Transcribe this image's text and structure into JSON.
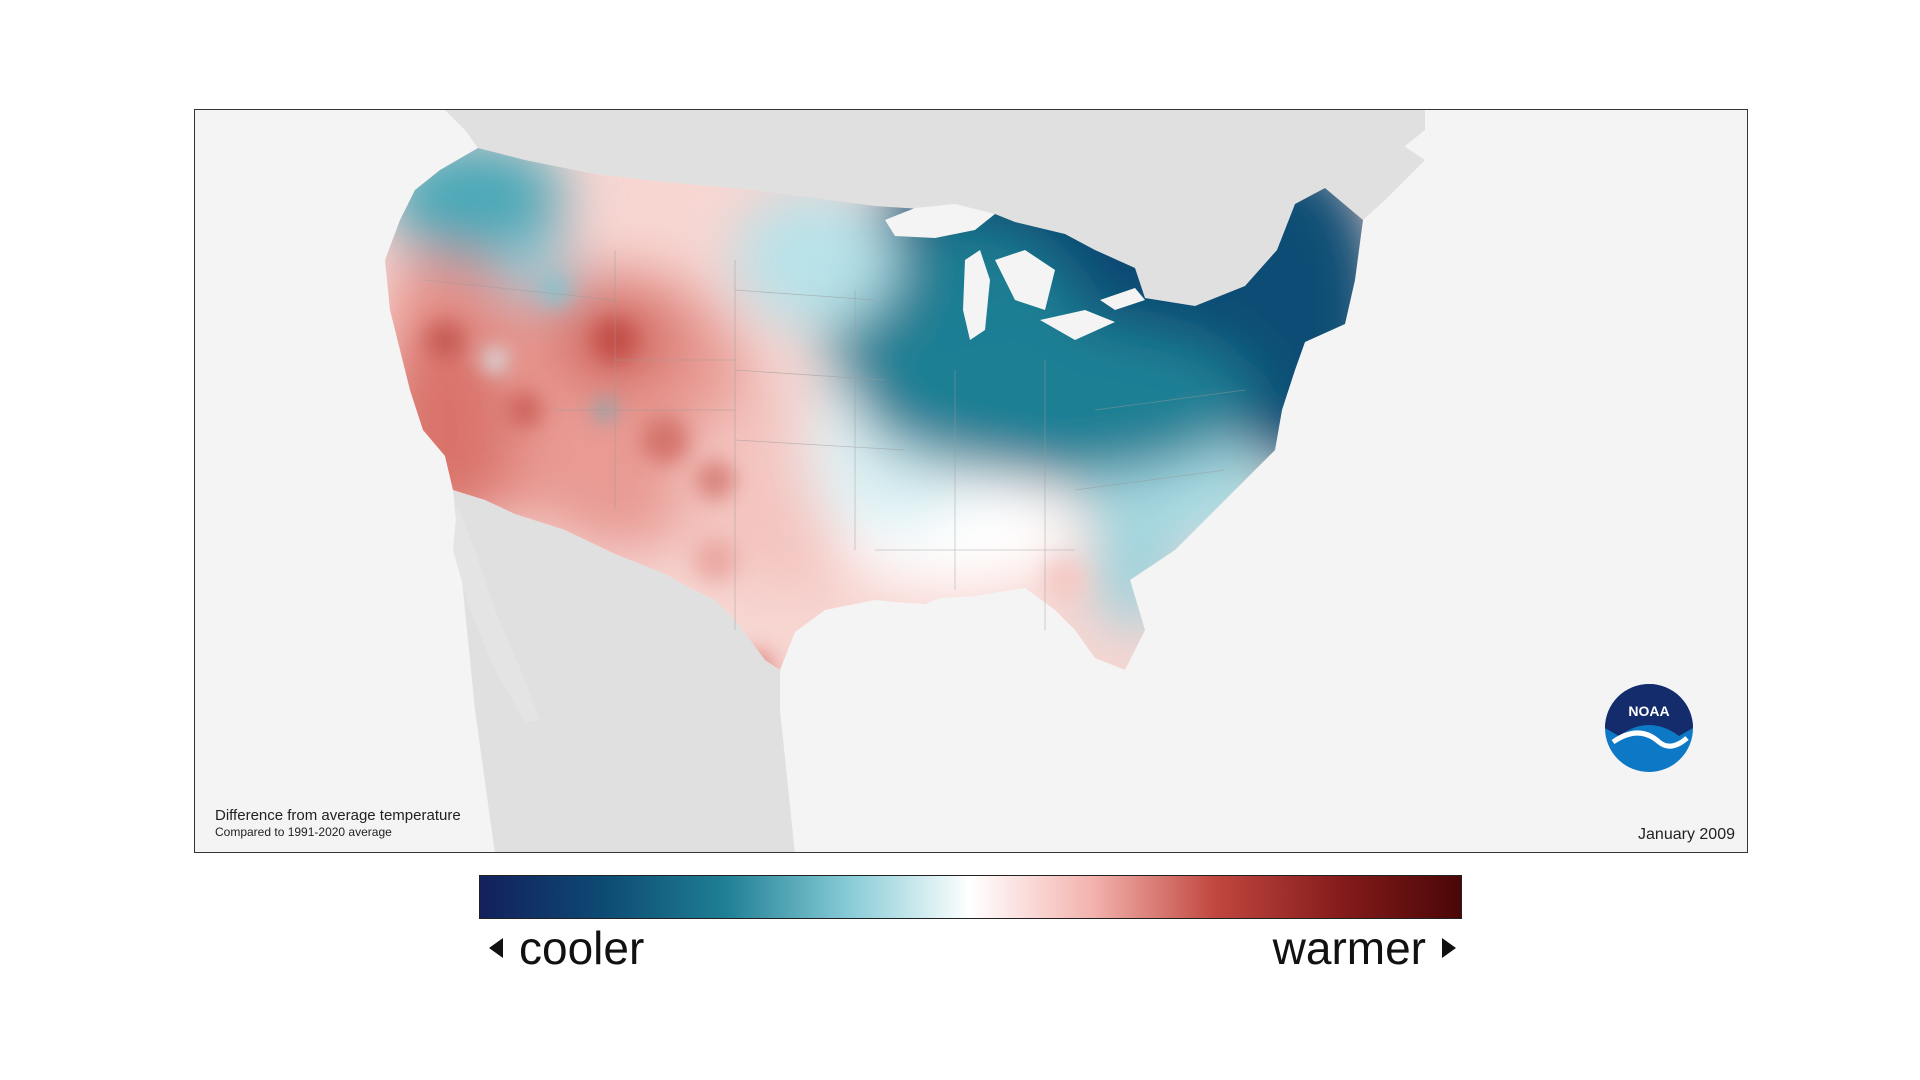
{
  "map": {
    "caption_title": "Difference from average temperature",
    "caption_subtitle": "Compared to 1991-2020 average",
    "date": "January 2009",
    "logo_text": "NOAA"
  },
  "legend": {
    "left_label": "cooler",
    "right_label": "warmer",
    "colors": [
      "#13205c",
      "#0d4a73",
      "#1f7f94",
      "#86cbd6",
      "#ffffff",
      "#f3b2ad",
      "#c0473f",
      "#861c1c",
      "#4a0606"
    ]
  },
  "colors": {
    "map_background": "#f4f4f4",
    "land_gray": "#e0e0e0",
    "lake_fill": "#f4f4f4"
  }
}
